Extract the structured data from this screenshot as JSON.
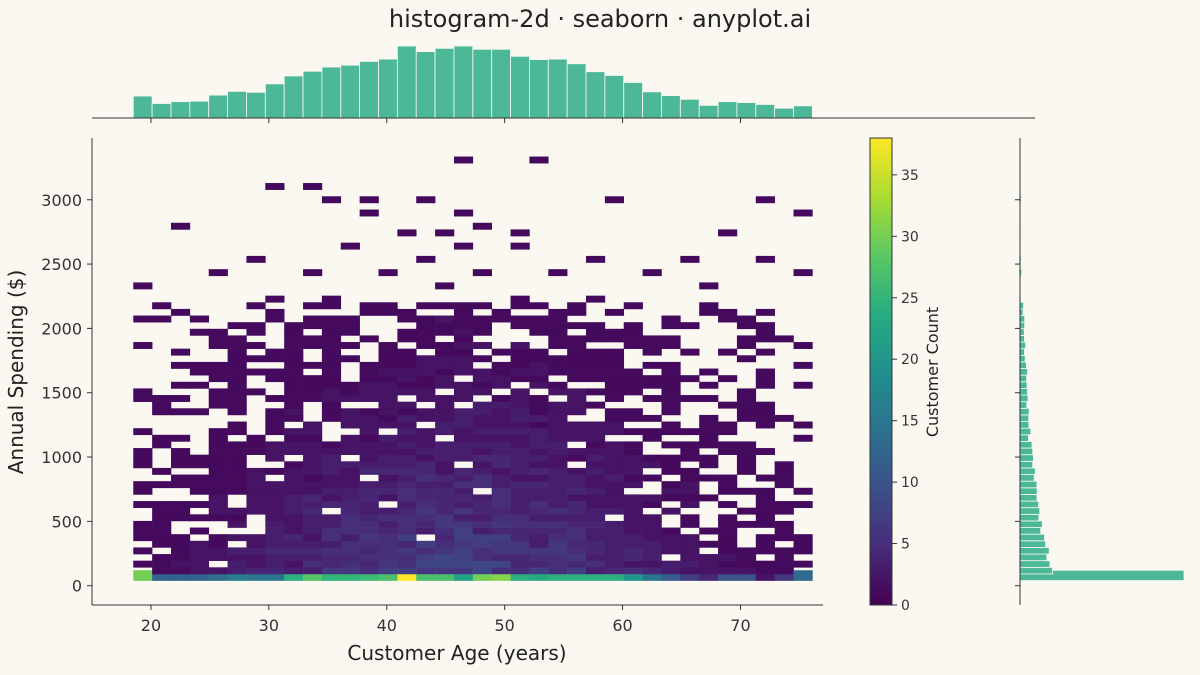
{
  "chart_data": {
    "type": "heatmap",
    "title": "histogram-2d · seaborn · anyplot.ai",
    "xlabel": "Customer Age (years)",
    "ylabel": "Annual Spending ($)",
    "colorbar_label": "Customer Count",
    "colormap": "viridis",
    "xlim": [
      15,
      77
    ],
    "ylim": [
      -150,
      3480
    ],
    "clim": [
      0,
      38
    ],
    "x_ticks": [
      20,
      30,
      40,
      50,
      60,
      70
    ],
    "y_ticks": [
      0,
      500,
      1000,
      1500,
      2000,
      2500,
      3000
    ],
    "colorbar_ticks": [
      0,
      5,
      10,
      15,
      20,
      25,
      30,
      35
    ],
    "x_bins": {
      "start": 18.5,
      "width": 1.6,
      "count": 36
    },
    "y_bins": {
      "start": 40,
      "width": 51.5,
      "count": 64
    },
    "bottom_row_counts": [
      30,
      12,
      12,
      12,
      14,
      16,
      15,
      15,
      24,
      28,
      25,
      25,
      26,
      27,
      38,
      27,
      27,
      22,
      30,
      31,
      24,
      23,
      24,
      24,
      24,
      24,
      20,
      15,
      11,
      7,
      4,
      10,
      10,
      2,
      6,
      13
    ],
    "sparse_cells": [
      [
        46,
        3290
      ],
      [
        53,
        3290
      ],
      [
        30,
        3090
      ],
      [
        33,
        3090
      ],
      [
        36,
        3000
      ],
      [
        39,
        3000
      ],
      [
        43,
        3000
      ],
      [
        60,
        3000
      ],
      [
        72,
        3000
      ],
      [
        38,
        2920
      ],
      [
        46,
        2920
      ],
      [
        75,
        2920
      ],
      [
        22,
        2820
      ],
      [
        48,
        2820
      ],
      [
        41,
        2720
      ],
      [
        45,
        2720
      ],
      [
        69,
        2720
      ],
      [
        51,
        2720
      ],
      [
        37,
        2620
      ],
      [
        47,
        2620
      ],
      [
        52,
        2620
      ],
      [
        29,
        2520
      ],
      [
        43,
        2520
      ],
      [
        58,
        2520
      ],
      [
        66,
        2520
      ],
      [
        72,
        2520
      ],
      [
        26,
        2420
      ],
      [
        33,
        2420
      ],
      [
        40,
        2420
      ],
      [
        48,
        2420
      ],
      [
        55,
        2420
      ],
      [
        62,
        2420
      ],
      [
        75,
        2420
      ],
      [
        19,
        2320
      ],
      [
        45,
        2320
      ],
      [
        67,
        2320
      ],
      [
        30,
        2220
      ],
      [
        36,
        2220
      ],
      [
        52,
        2220
      ],
      [
        58,
        2220
      ]
    ],
    "colorbar": {
      "orientation": "vertical",
      "placement": "right"
    },
    "marginal_x": {
      "orientation": "top"
    },
    "marginal_y": {
      "orientation": "right"
    }
  }
}
